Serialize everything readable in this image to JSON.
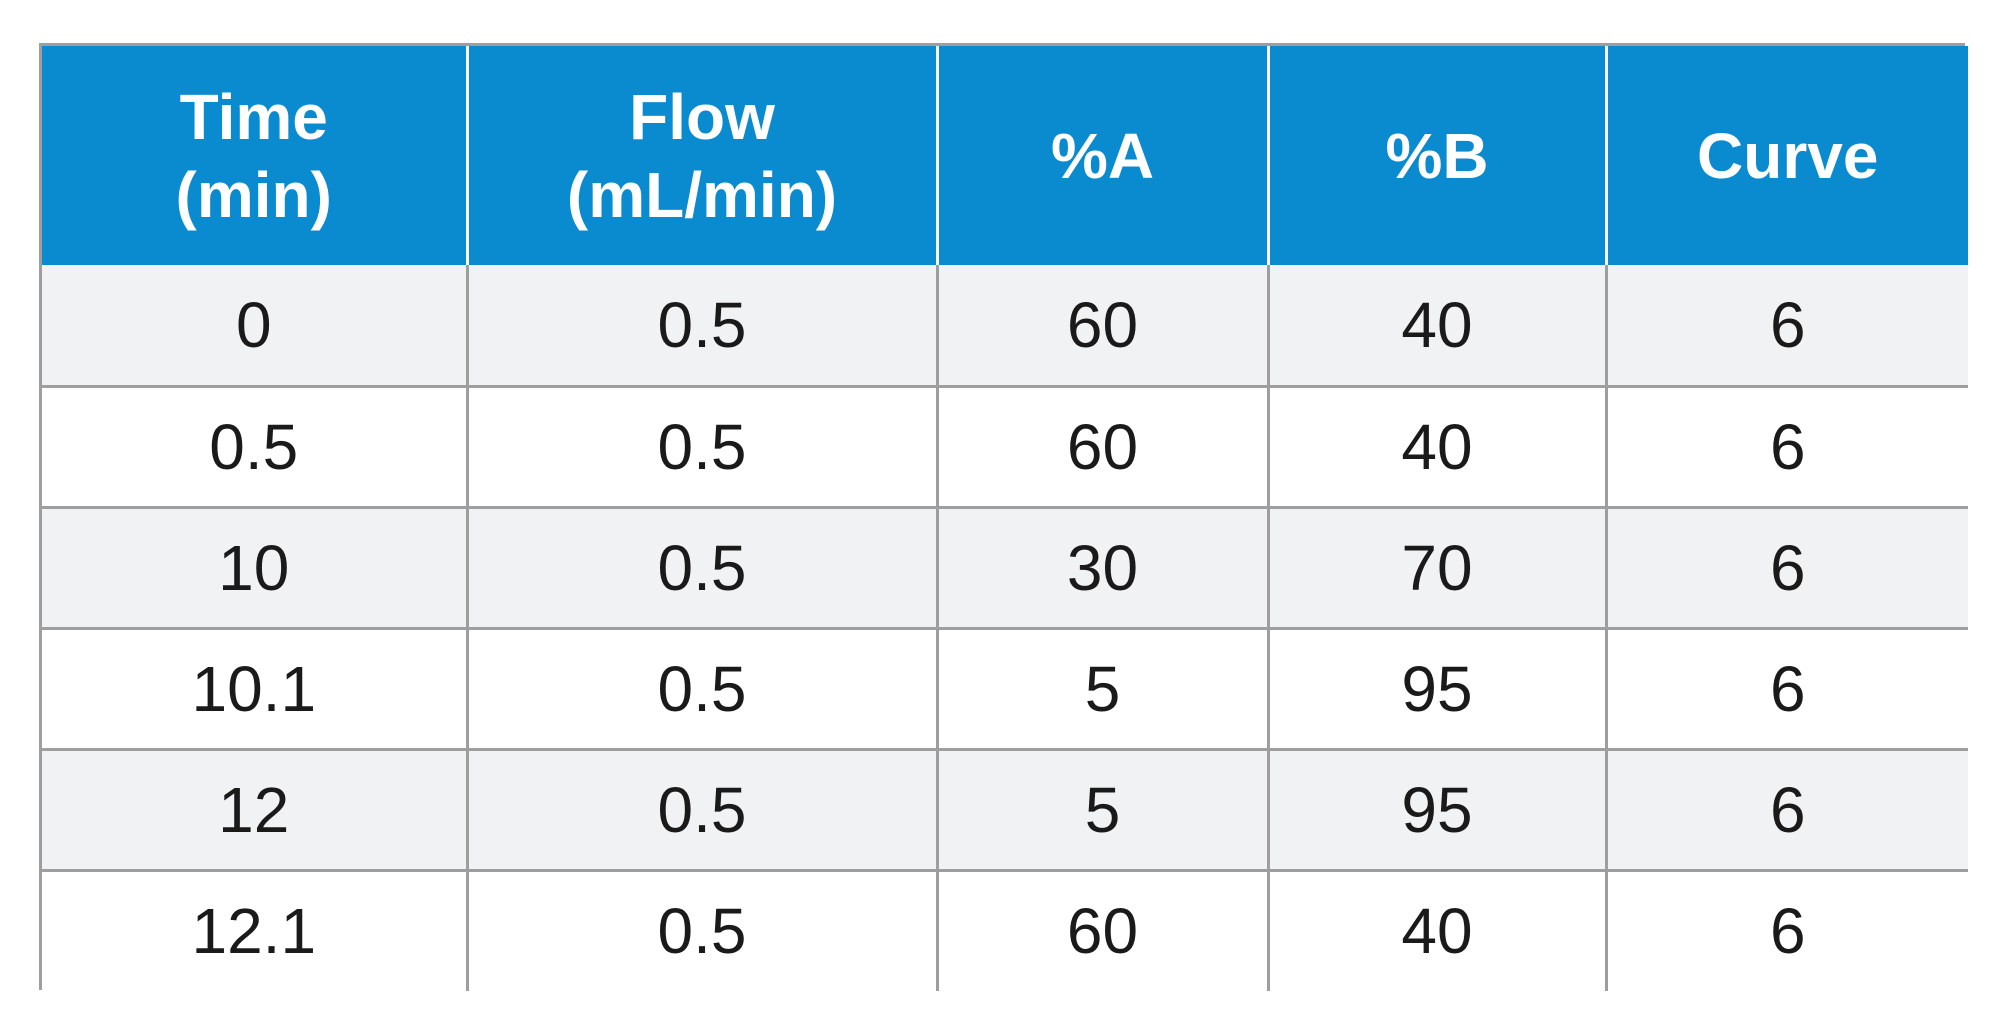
{
  "table": {
    "headers": [
      [
        "Time",
        "(min)"
      ],
      [
        "Flow",
        "(mL/min)"
      ],
      [
        "%A"
      ],
      [
        "%B"
      ],
      [
        "Curve"
      ]
    ],
    "rows": [
      [
        "0",
        "0.5",
        "60",
        "40",
        "6"
      ],
      [
        "0.5",
        "0.5",
        "60",
        "40",
        "6"
      ],
      [
        "10",
        "0.5",
        "30",
        "70",
        "6"
      ],
      [
        "10.1",
        "0.5",
        "5",
        "95",
        "6"
      ],
      [
        "12",
        "0.5",
        "5",
        "95",
        "6"
      ],
      [
        "12.1",
        "0.5",
        "60",
        "40",
        "6"
      ]
    ]
  },
  "colors": {
    "header_background": "#0a8bd0",
    "header_text": "#ffffff",
    "row_stripe": "#f1f2f4",
    "grid_line": "#9e9e9e"
  }
}
